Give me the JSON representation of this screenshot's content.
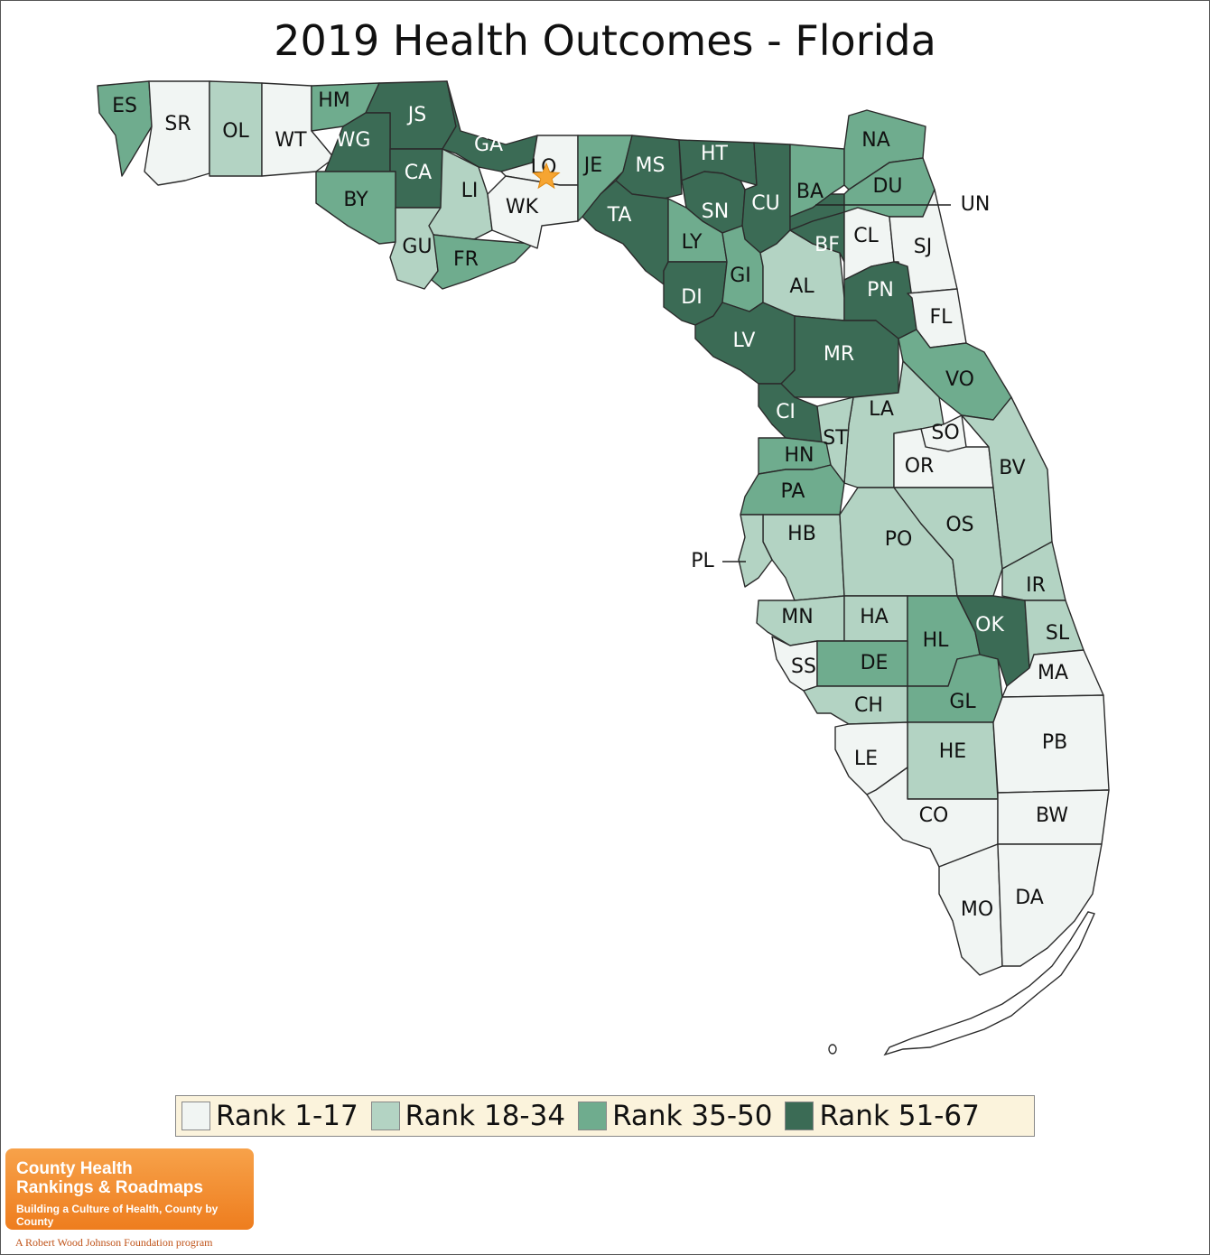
{
  "title": "2019 Health Outcomes - Florida",
  "colors": {
    "rank_1_17": "#f1f5f3",
    "rank_18_34": "#b3d3c3",
    "rank_35_50": "#6fac8e",
    "rank_51_67": "#3b6b55",
    "star": "#f6a532",
    "legend_bg": "#fbf3dc"
  },
  "legend": {
    "items": [
      {
        "label": "Rank 1-17",
        "color": "#f1f5f3"
      },
      {
        "label": "Rank 18-34",
        "color": "#b3d3c3"
      },
      {
        "label": "Rank 35-50",
        "color": "#6fac8e"
      },
      {
        "label": "Rank 51-67",
        "color": "#3b6b55"
      }
    ]
  },
  "star_county": "LO",
  "counties": [
    {
      "abbr": "ES",
      "tier": 3
    },
    {
      "abbr": "SR",
      "tier": 1
    },
    {
      "abbr": "OL",
      "tier": 2
    },
    {
      "abbr": "WT",
      "tier": 1
    },
    {
      "abbr": "HM",
      "tier": 3
    },
    {
      "abbr": "JS",
      "tier": 4
    },
    {
      "abbr": "WG",
      "tier": 4
    },
    {
      "abbr": "CA",
      "tier": 4
    },
    {
      "abbr": "BY",
      "tier": 3
    },
    {
      "abbr": "GU",
      "tier": 2
    },
    {
      "abbr": "GA",
      "tier": 4
    },
    {
      "abbr": "LI",
      "tier": 2
    },
    {
      "abbr": "FR",
      "tier": 3
    },
    {
      "abbr": "LO",
      "tier": 1
    },
    {
      "abbr": "WK",
      "tier": 1
    },
    {
      "abbr": "JE",
      "tier": 3
    },
    {
      "abbr": "MS",
      "tier": 4
    },
    {
      "abbr": "TA",
      "tier": 4
    },
    {
      "abbr": "HT",
      "tier": 4
    },
    {
      "abbr": "SN",
      "tier": 4
    },
    {
      "abbr": "LY",
      "tier": 3
    },
    {
      "abbr": "CU",
      "tier": 4
    },
    {
      "abbr": "DI",
      "tier": 4
    },
    {
      "abbr": "GI",
      "tier": 3
    },
    {
      "abbr": "LV",
      "tier": 4
    },
    {
      "abbr": "AL",
      "tier": 2
    },
    {
      "abbr": "BA",
      "tier": 3
    },
    {
      "abbr": "UN",
      "tier": 4
    },
    {
      "abbr": "BF",
      "tier": 4
    },
    {
      "abbr": "NA",
      "tier": 3
    },
    {
      "abbr": "DU",
      "tier": 3
    },
    {
      "abbr": "CL",
      "tier": 1
    },
    {
      "abbr": "SJ",
      "tier": 1
    },
    {
      "abbr": "PN",
      "tier": 4
    },
    {
      "abbr": "FL",
      "tier": 1
    },
    {
      "abbr": "MR",
      "tier": 4
    },
    {
      "abbr": "VO",
      "tier": 3
    },
    {
      "abbr": "CI",
      "tier": 4
    },
    {
      "abbr": "LA",
      "tier": 2
    },
    {
      "abbr": "SO",
      "tier": 1
    },
    {
      "abbr": "ST",
      "tier": 2
    },
    {
      "abbr": "HN",
      "tier": 3
    },
    {
      "abbr": "OR",
      "tier": 1
    },
    {
      "abbr": "BV",
      "tier": 2
    },
    {
      "abbr": "PA",
      "tier": 3
    },
    {
      "abbr": "HB",
      "tier": 2
    },
    {
      "abbr": "PO",
      "tier": 2
    },
    {
      "abbr": "OS",
      "tier": 2
    },
    {
      "abbr": "PL",
      "tier": 2
    },
    {
      "abbr": "IR",
      "tier": 2
    },
    {
      "abbr": "MN",
      "tier": 2
    },
    {
      "abbr": "HA",
      "tier": 2
    },
    {
      "abbr": "HL",
      "tier": 3
    },
    {
      "abbr": "OK",
      "tier": 4
    },
    {
      "abbr": "SL",
      "tier": 2
    },
    {
      "abbr": "SS",
      "tier": 1
    },
    {
      "abbr": "DE",
      "tier": 3
    },
    {
      "abbr": "MA",
      "tier": 1
    },
    {
      "abbr": "CH",
      "tier": 2
    },
    {
      "abbr": "GL",
      "tier": 3
    },
    {
      "abbr": "HE",
      "tier": 2
    },
    {
      "abbr": "PB",
      "tier": 1
    },
    {
      "abbr": "LE",
      "tier": 1
    },
    {
      "abbr": "CO",
      "tier": 1
    },
    {
      "abbr": "BW",
      "tier": 1
    },
    {
      "abbr": "MO",
      "tier": 1
    },
    {
      "abbr": "DA",
      "tier": 1
    }
  ],
  "logo": {
    "line1": "County Health",
    "line2": "Rankings & Roadmaps",
    "tagline": "Building a Culture of Health, County by County",
    "sub": "A Robert Wood Johnson Foundation program"
  }
}
